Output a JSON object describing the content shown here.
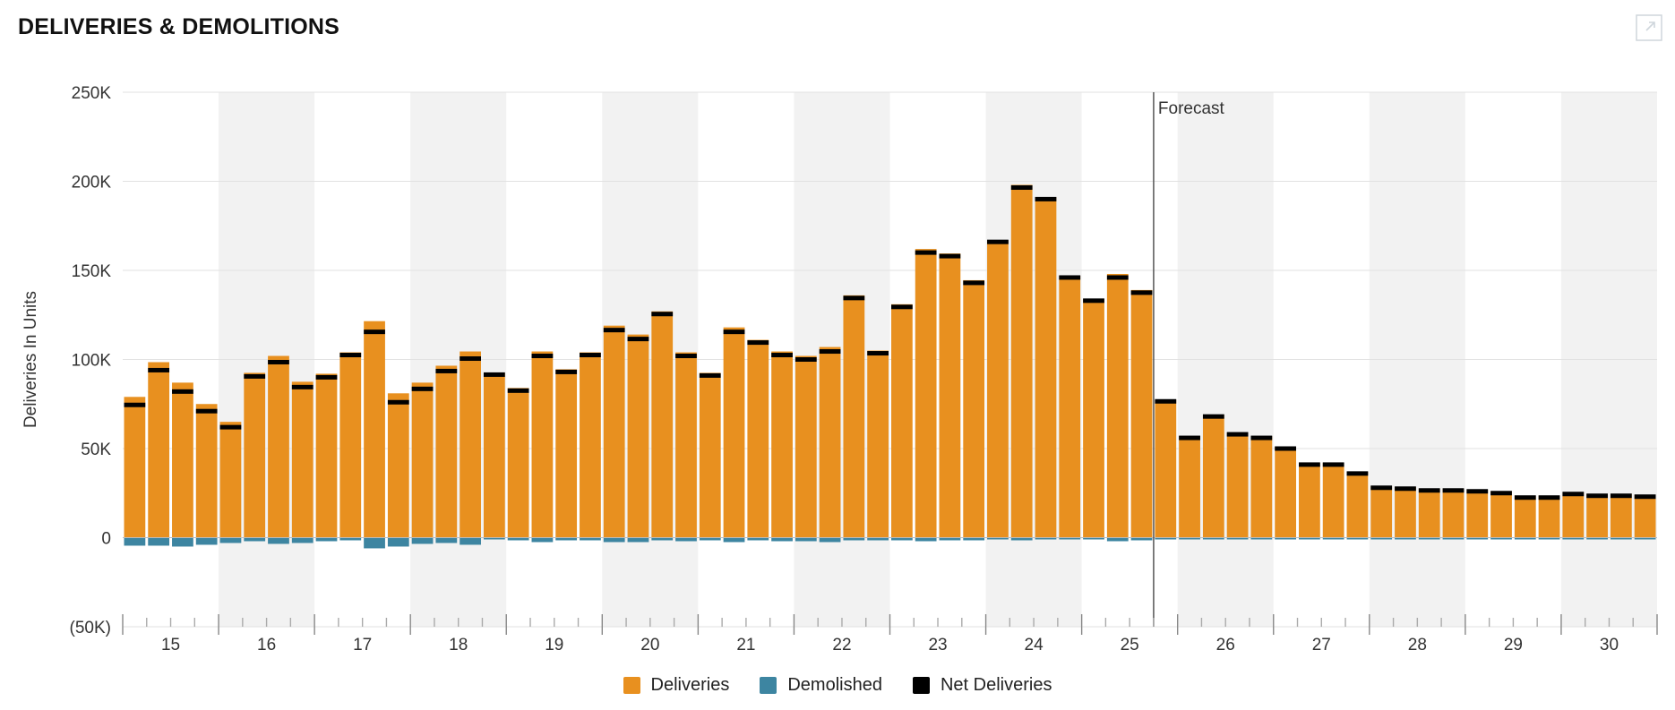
{
  "header": {
    "title": "DELIVERIES & DEMOLITIONS"
  },
  "icons": {
    "expand": "expand-icon"
  },
  "colors": {
    "deliveries": "#E8901F",
    "demolished": "#3D85A1",
    "net": "#000000",
    "band": "#F2F2F2",
    "grid": "#E2E2E2",
    "forecast_line": "#555555"
  },
  "chart_data": {
    "type": "bar",
    "ylabel": "Deliveries In Units",
    "ylim": [
      -50000,
      250000
    ],
    "yticks": [
      -50000,
      0,
      50000,
      100000,
      150000,
      200000,
      250000
    ],
    "ytick_labels": [
      "(50K)",
      "0",
      "50K",
      "100K",
      "150K",
      "200K",
      "250K"
    ],
    "year_labels": [
      "15",
      "16",
      "17",
      "18",
      "19",
      "20",
      "21",
      "22",
      "23",
      "24",
      "25",
      "26",
      "27",
      "28",
      "29",
      "30"
    ],
    "periods_per_year": 4,
    "forecast_label": "Forecast",
    "forecast_after_index": 42,
    "legend": [
      "Deliveries",
      "Demolished",
      "Net Deliveries"
    ],
    "series": [
      {
        "name": "Deliveries",
        "values": [
          79000,
          98500,
          87000,
          75000,
          65000,
          92500,
          102000,
          87500,
          92000,
          104000,
          121500,
          81000,
          87000,
          96500,
          104500,
          92500,
          84000,
          104500,
          94500,
          104000,
          119000,
          114000,
          127000,
          104000,
          92500,
          118000,
          111000,
          104500,
          102000,
          107000,
          136000,
          105000,
          131000,
          162000,
          159500,
          144500,
          167000,
          198000,
          191000,
          147000,
          134000,
          148000,
          139000,
          77500,
          57000,
          69000,
          59000,
          57000,
          51000,
          42000,
          42000,
          37000,
          29000,
          28500,
          27500,
          27500,
          27000,
          26000,
          23500,
          23500,
          25500,
          24500,
          24500,
          24000
        ]
      },
      {
        "name": "Demolished",
        "values": [
          -4500,
          -4500,
          -5000,
          -4000,
          -3000,
          -2000,
          -3500,
          -3000,
          -2000,
          -1500,
          -6000,
          -5000,
          -3500,
          -3000,
          -4000,
          -1000,
          -1500,
          -2500,
          -1500,
          -1500,
          -2500,
          -2500,
          -1500,
          -2000,
          -1500,
          -2500,
          -1500,
          -2000,
          -2000,
          -2500,
          -1500,
          -1500,
          -1500,
          -2000,
          -1500,
          -1500,
          -1000,
          -1500,
          -1000,
          -1000,
          -1000,
          -2000,
          -1500,
          -1000,
          -1000,
          -1000,
          -1000,
          -1000,
          -1000,
          -1000,
          -1000,
          -1000,
          -1000,
          -1000,
          -1000,
          -1000,
          -1000,
          -1000,
          -1000,
          -1000,
          -1000,
          -1000,
          -1000,
          -1000
        ]
      },
      {
        "name": "Net Deliveries",
        "values": [
          74500,
          94000,
          82000,
          71000,
          62000,
          90500,
          98500,
          84500,
          90000,
          102500,
          115500,
          76000,
          83500,
          93500,
          100500,
          91500,
          82500,
          102000,
          93000,
          102500,
          116500,
          111500,
          125500,
          102000,
          91000,
          115500,
          109500,
          102500,
          100000,
          104500,
          134500,
          103500,
          129500,
          160000,
          158000,
          143000,
          166000,
          196500,
          190000,
          146000,
          133000,
          146000,
          137500,
          76500,
          56000,
          68000,
          58000,
          56000,
          50000,
          41000,
          41000,
          36000,
          28000,
          27500,
          26500,
          26500,
          26000,
          25000,
          22500,
          22500,
          24500,
          23500,
          23500,
          23000
        ]
      }
    ]
  },
  "legend": {
    "deliveries_label": "Deliveries",
    "demolished_label": "Demolished",
    "net_label": "Net Deliveries"
  }
}
